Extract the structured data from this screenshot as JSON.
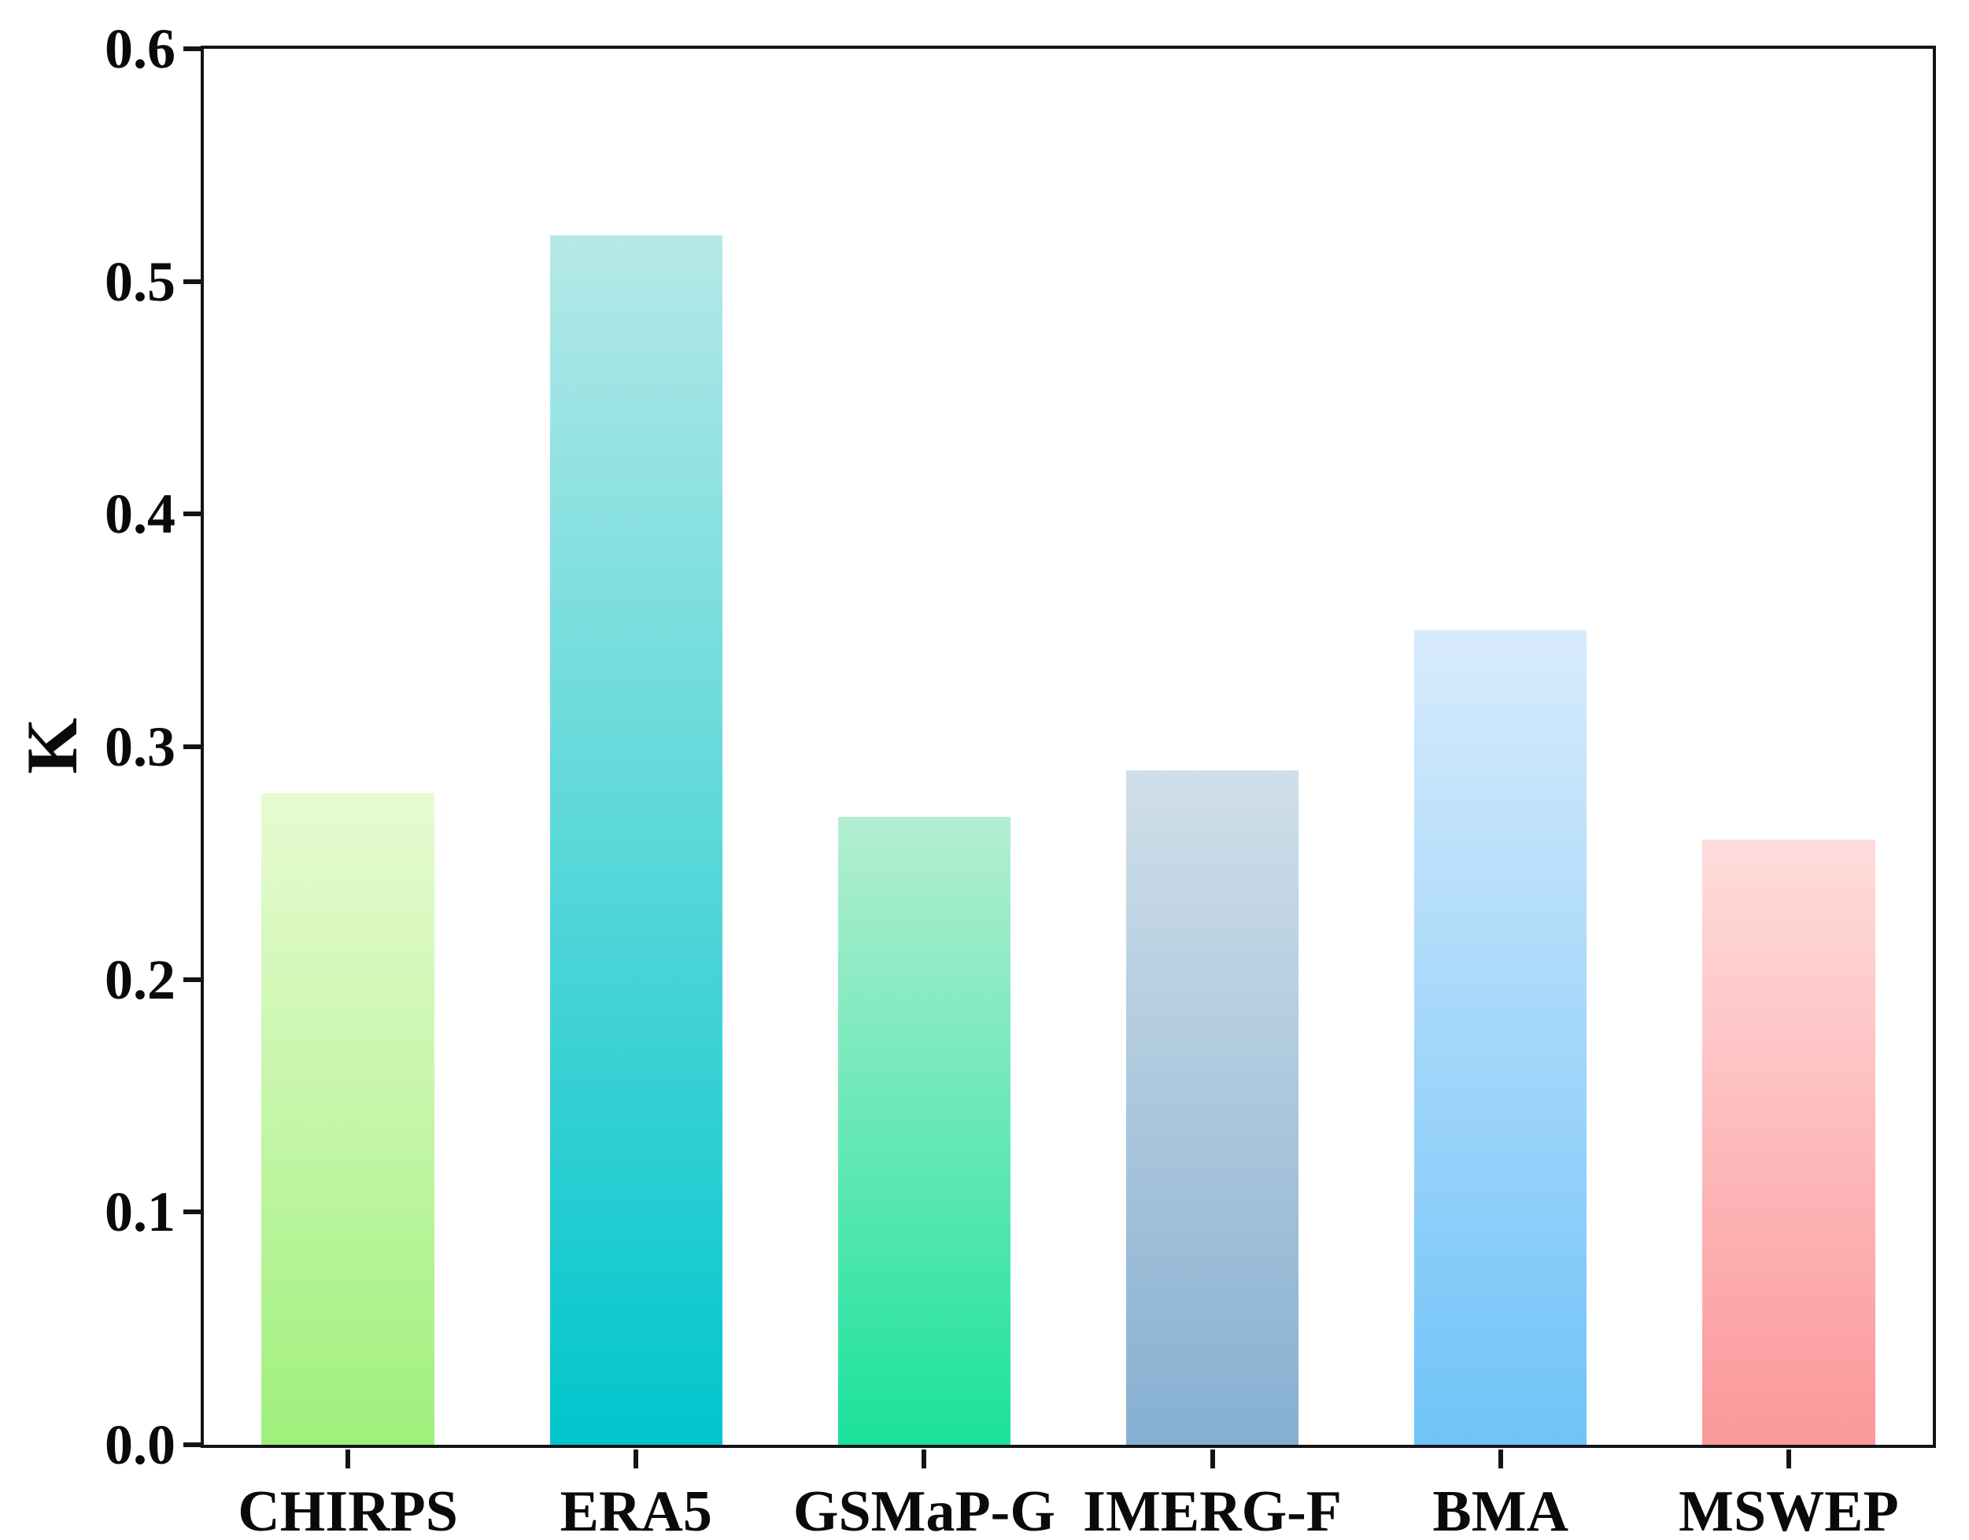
{
  "figure": {
    "background": "#ffffff",
    "axis_color": "#141414",
    "text_color": "#0a0a0a"
  },
  "chart_data": {
    "type": "bar",
    "title": "",
    "xlabel": "",
    "ylabel": "K",
    "categories": [
      "CHIRPS",
      "ERA5",
      "GSMaP-G",
      "IMERG-F",
      "BMA",
      "MSWEP"
    ],
    "values": [
      0.28,
      0.52,
      0.27,
      0.29,
      0.35,
      0.26
    ],
    "ylim": [
      0.0,
      0.6
    ],
    "ytick_labels": [
      "0.0",
      "0.1",
      "0.2",
      "0.3",
      "0.4",
      "0.5",
      "0.6"
    ],
    "grid": false,
    "legend": "none",
    "bar_width_fraction": 0.6,
    "bar_gradients": [
      {
        "top": "#e8fbd2",
        "bottom": "#9ff07c"
      },
      {
        "top": "#b5e9e7",
        "bottom": "#00c6cc"
      },
      {
        "top": "#b4eed2",
        "bottom": "#1be29b"
      },
      {
        "top": "#d0dfe9",
        "bottom": "#86afd1"
      },
      {
        "top": "#d8ebfc",
        "bottom": "#6fc3f8"
      },
      {
        "top": "#ffdcdc",
        "bottom": "#fb989a"
      }
    ]
  }
}
